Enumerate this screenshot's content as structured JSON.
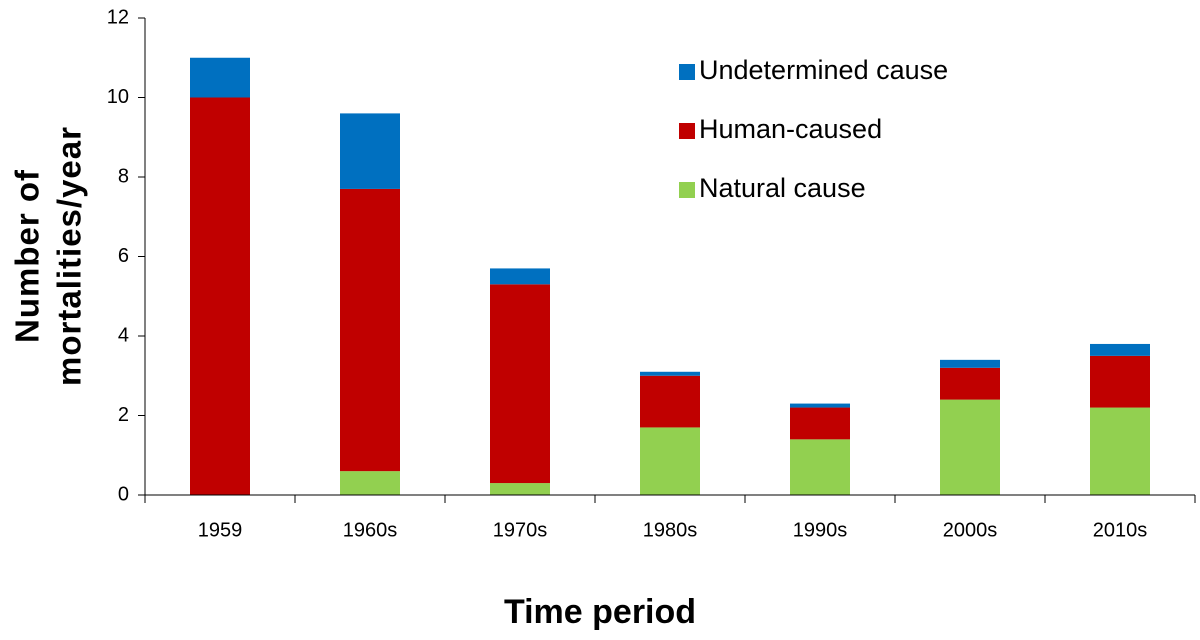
{
  "chart_data": {
    "type": "stacked_bar",
    "xlabel": "Time period",
    "ylabel": [
      "Number of",
      "mortalities/year"
    ],
    "categories": [
      "1959",
      "1960s",
      "1970s",
      "1980s",
      "1990s",
      "2000s",
      "2010s"
    ],
    "series": [
      {
        "name": "Natural cause",
        "color": "#92d050",
        "values": [
          0,
          0.6,
          0.3,
          1.7,
          1.4,
          2.4,
          2.2
        ]
      },
      {
        "name": "Human-caused",
        "color": "#c00000",
        "values": [
          10,
          7.1,
          5.0,
          1.3,
          0.8,
          0.8,
          1.3
        ]
      },
      {
        "name": "Undetermined cause",
        "color": "#0070c0",
        "values": [
          1,
          1.9,
          0.4,
          0.1,
          0.1,
          0.2,
          0.3
        ]
      }
    ],
    "ylim": [
      0,
      12
    ],
    "yticks": [
      0,
      2,
      4,
      6,
      8,
      10,
      12
    ],
    "legend": "upper right"
  }
}
